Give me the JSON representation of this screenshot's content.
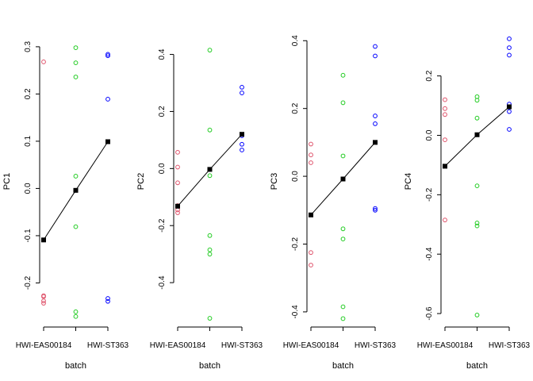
{
  "chart_data": [
    {
      "type": "scatter",
      "ylabel": "PC1",
      "xlabel": "batch",
      "x_tick_labels": [
        "HWI-EAS00184",
        "HWI-ST363"
      ],
      "ylim": [
        -0.29,
        0.32
      ],
      "yticks": [
        -0.2,
        -0.1,
        0.0,
        0.1,
        0.2,
        0.3
      ],
      "ytick_labels": [
        "-0.2",
        "-0.1",
        "0.0",
        "0.1",
        "0.2",
        "0.3"
      ],
      "series": [
        {
          "color": "#DF536B",
          "group": 1,
          "values": [
            0.268,
            -0.227,
            -0.229,
            -0.238,
            -0.243
          ]
        },
        {
          "color": "#22CC22",
          "group": 2,
          "values": [
            0.298,
            0.266,
            0.236,
            0.026,
            -0.081,
            -0.261,
            -0.271
          ]
        },
        {
          "color": "#0000FF",
          "group": 3,
          "values": [
            0.284,
            0.281,
            0.189,
            -0.233,
            -0.239
          ]
        }
      ],
      "means": [
        -0.109,
        -0.004,
        0.099
      ]
    },
    {
      "type": "scatter",
      "ylabel": "PC2",
      "xlabel": "batch",
      "x_tick_labels": [
        "HWI-EAS00184",
        "HWI-ST363"
      ],
      "ylim": [
        -0.55,
        0.46
      ],
      "yticks": [
        -0.4,
        -0.2,
        0.0,
        0.2,
        0.4
      ],
      "ytick_labels": [
        "-0.4",
        "-0.2",
        "0.0",
        "0.2",
        "0.4"
      ],
      "series": [
        {
          "color": "#DF536B",
          "group": 1,
          "values": [
            0.057,
            0.005,
            -0.05,
            -0.13,
            -0.145,
            -0.155
          ]
        },
        {
          "color": "#22CC22",
          "group": 2,
          "values": [
            0.415,
            0.135,
            -0.025,
            -0.235,
            -0.285,
            -0.3,
            -0.525
          ]
        },
        {
          "color": "#0000FF",
          "group": 3,
          "values": [
            0.285,
            0.265,
            0.115,
            0.085,
            0.065
          ]
        }
      ],
      "means": [
        -0.132,
        -0.003,
        0.12
      ]
    },
    {
      "type": "scatter",
      "ylabel": "PC3",
      "xlabel": "batch",
      "x_tick_labels": [
        "HWI-EAS00184",
        "HWI-ST363"
      ],
      "ylim": [
        -0.44,
        0.41
      ],
      "yticks": [
        -0.4,
        -0.2,
        0.0,
        0.2,
        0.4
      ],
      "ytick_labels": [
        "-0.4",
        "-0.2",
        "0.0",
        "0.2",
        "0.4"
      ],
      "series": [
        {
          "color": "#DF536B",
          "group": 1,
          "values": [
            0.095,
            0.063,
            0.04,
            -0.225,
            -0.262
          ]
        },
        {
          "color": "#22CC22",
          "group": 2,
          "values": [
            0.298,
            0.217,
            0.06,
            -0.155,
            -0.185,
            -0.385,
            -0.42
          ]
        },
        {
          "color": "#0000FF",
          "group": 3,
          "values": [
            0.383,
            0.355,
            0.178,
            0.155,
            -0.095,
            -0.1
          ]
        }
      ],
      "means": [
        -0.114,
        -0.008,
        0.1
      ]
    },
    {
      "type": "scatter",
      "ylabel": "PC4",
      "xlabel": "batch",
      "x_tick_labels": [
        "HWI-EAS00184",
        "HWI-ST363"
      ],
      "ylim": [
        -0.64,
        0.33
      ],
      "yticks": [
        -0.6,
        -0.4,
        -0.2,
        0.0,
        0.2
      ],
      "ytick_labels": [
        "-0.6",
        "-0.4",
        "-0.2",
        "0.0",
        "0.2"
      ],
      "series": [
        {
          "color": "#DF536B",
          "group": 1,
          "values": [
            0.12,
            0.09,
            0.07,
            -0.015,
            -0.285
          ]
        },
        {
          "color": "#22CC22",
          "group": 2,
          "values": [
            0.13,
            0.118,
            0.058,
            -0.17,
            -0.295,
            -0.305,
            -0.605
          ]
        },
        {
          "color": "#0000FF",
          "group": 3,
          "values": [
            0.325,
            0.295,
            0.27,
            0.105,
            0.095,
            0.08,
            0.02
          ]
        }
      ],
      "means": [
        -0.104,
        0.002,
        0.096
      ]
    }
  ]
}
